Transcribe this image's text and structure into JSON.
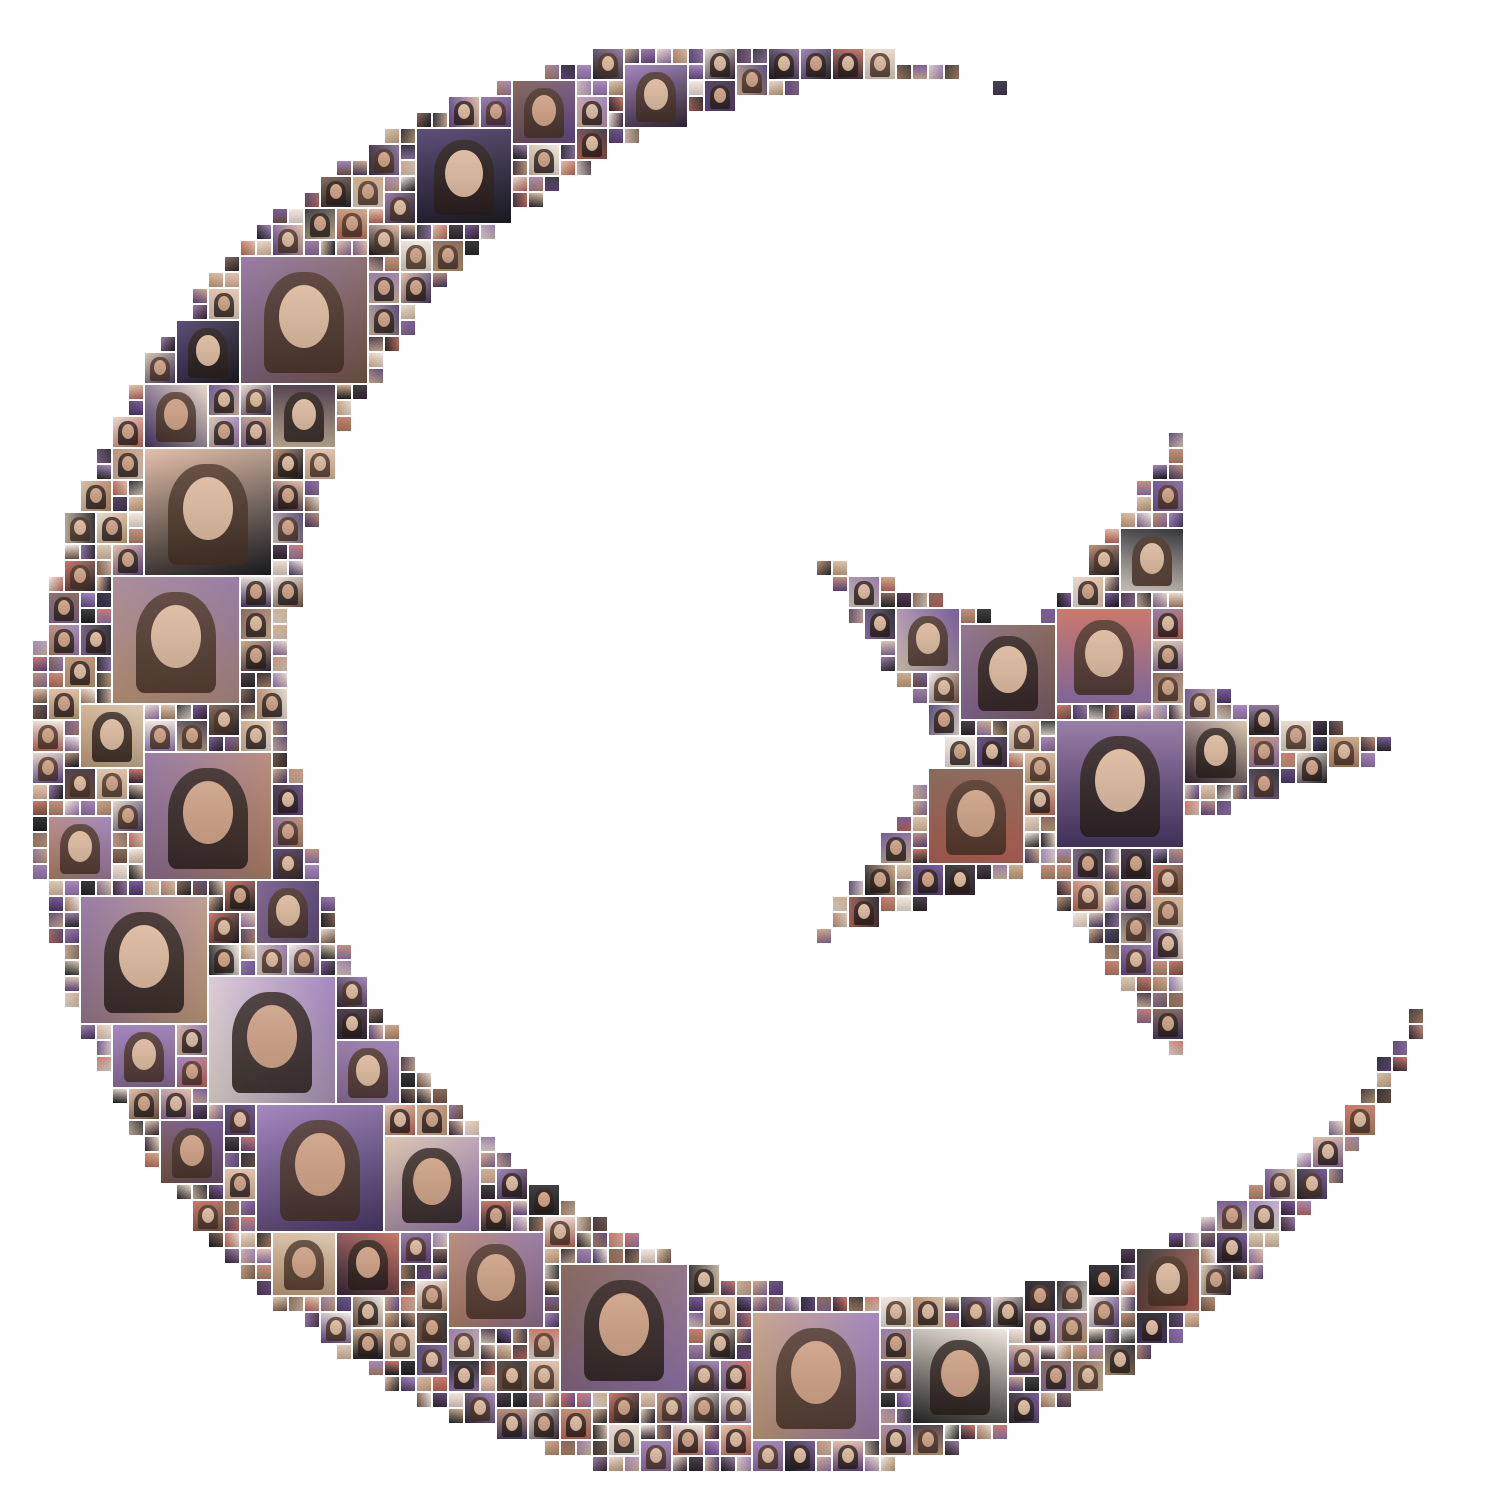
{
  "image": {
    "subject": "photo-mosaic",
    "shape": "crescent-and-star",
    "background_color": "#ffffff",
    "tile_palette": [
      "#6a4a8f",
      "#9b7bb8",
      "#3a2a3a",
      "#c9a27e",
      "#e7d6c6",
      "#2b2b2b",
      "#b8866a",
      "#f0e6dc",
      "#7a5a4a",
      "#d9c2a8",
      "#4c3b6b",
      "#c46a5a",
      "#1e1e24",
      "#e0b9a0",
      "#8e6f9d"
    ],
    "featured_tile_count": 34
  }
}
